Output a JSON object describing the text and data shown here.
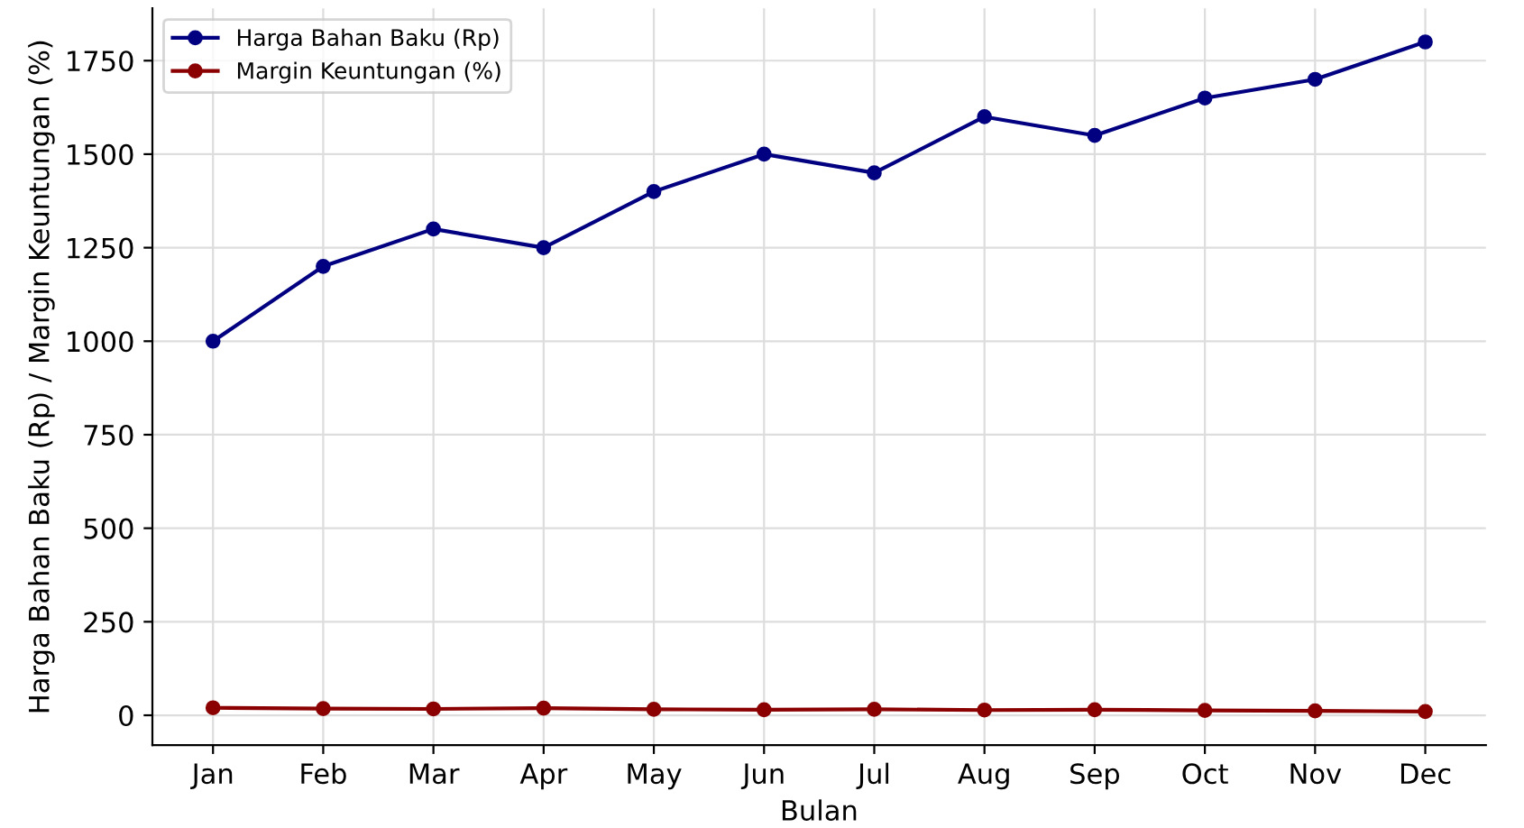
{
  "chart_data": {
    "type": "line",
    "xlabel": "Bulan",
    "ylabel": "Harga Bahan Baku (Rp) / Margin Keuntungan (%)",
    "categories": [
      "Jan",
      "Feb",
      "Mar",
      "Apr",
      "May",
      "Jun",
      "Jul",
      "Aug",
      "Sep",
      "Oct",
      "Nov",
      "Dec"
    ],
    "series": [
      {
        "name": "Harga Bahan Baku (Rp)",
        "color": "#000080",
        "values": [
          1000,
          1200,
          1300,
          1250,
          1400,
          1500,
          1450,
          1600,
          1550,
          1650,
          1700,
          1800
        ]
      },
      {
        "name": "Margin Keuntungan (%)",
        "color": "#8b0000",
        "values": [
          20,
          18,
          17,
          19,
          16,
          15,
          16,
          14,
          15,
          13,
          12,
          10
        ]
      }
    ],
    "ylim": [
      -80,
      1890
    ],
    "yticks": [
      0,
      250,
      500,
      750,
      1000,
      1250,
      1500,
      1750
    ],
    "grid": true,
    "legend": "top left",
    "marker": "circle",
    "line_style": "solid"
  }
}
